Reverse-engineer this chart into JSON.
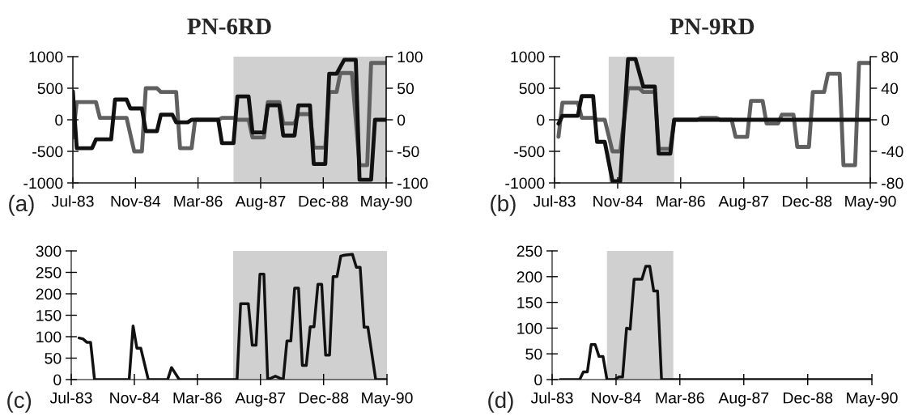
{
  "chart_data": [
    {
      "type": "line",
      "title": "PN-6RD",
      "annotations": [
        "(a)"
      ],
      "xlim": [
        "1983-07-01",
        "1990-05-01"
      ],
      "xticks": [
        {
          "value": "1983-07-01",
          "label": "Jul-83"
        },
        {
          "value": "1984-11-11",
          "label": "Nov-84"
        },
        {
          "value": "1986-03-24",
          "label": "Mar-86"
        },
        {
          "value": "1987-08-05",
          "label": "Aug-87"
        },
        {
          "value": "1988-12-16",
          "label": "Dec-88"
        },
        {
          "value": "1990-05-01",
          "label": "May-90"
        }
      ],
      "ylim": [
        -1000,
        1000
      ],
      "yticks": [
        -1000,
        -500,
        0,
        500,
        1000
      ],
      "y2lim": [
        -100,
        100
      ],
      "y2ticks": [
        -100,
        -50,
        0,
        50,
        100
      ],
      "bands": [
        {
          "axis": "x",
          "from": "1987-01",
          "to": "1990-05",
          "color": "#d0d0d0"
        }
      ],
      "grid": false,
      "legend": false,
      "series": [
        {
          "color": "#606060",
          "x": [
            "1983-07",
            "1983-08",
            "1984-01",
            "1984-02",
            "1984-09",
            "1984-11",
            "1985-01",
            "1985-02",
            "1985-05",
            "1985-06",
            "1985-10",
            "1985-11",
            "1986-02",
            "1986-03",
            "1986-09",
            "1986-10",
            "1987-01",
            "1987-02",
            "1987-05",
            "1987-06",
            "1987-09",
            "1987-10",
            "1988-01",
            "1988-02",
            "1988-05",
            "1988-06",
            "1988-09",
            "1988-10",
            "1989-01",
            "1989-02",
            "1989-04",
            "1989-05",
            "1989-08",
            "1989-10",
            "1989-12",
            "1990-01",
            "1990-05"
          ],
          "values": [
            -280,
            280,
            280,
            30,
            30,
            -500,
            -500,
            500,
            500,
            440,
            440,
            -450,
            -450,
            0,
            0,
            30,
            30,
            0,
            0,
            -280,
            -280,
            280,
            280,
            -60,
            -60,
            90,
            90,
            -440,
            -440,
            440,
            440,
            740,
            740,
            -720,
            -720,
            900,
            900
          ]
        },
        {
          "color": "#111111",
          "axis": "y2",
          "x": [
            "1983-07",
            "1983-08",
            "1983-12",
            "1984-01",
            "1984-05",
            "1984-06",
            "1984-09",
            "1984-10",
            "1985-01",
            "1985-02",
            "1985-05",
            "1985-06",
            "1985-09",
            "1985-10",
            "1986-01",
            "1986-02",
            "1986-09",
            "1986-10",
            "1987-01",
            "1987-02",
            "1987-05",
            "1987-06",
            "1987-09",
            "1987-10",
            "1988-01",
            "1988-02",
            "1988-05",
            "1988-06",
            "1988-09",
            "1988-10",
            "1989-01",
            "1989-02",
            "1989-04",
            "1989-06",
            "1989-09",
            "1989-10",
            "1990-01",
            "1990-02",
            "1990-05"
          ],
          "values": [
            45,
            -45,
            -45,
            -31,
            -31,
            32,
            32,
            18,
            18,
            -18,
            -18,
            8,
            8,
            -4,
            -4,
            0,
            0,
            -37,
            -37,
            37,
            37,
            -20,
            -20,
            23,
            23,
            -25,
            -25,
            23,
            23,
            -70,
            -70,
            73,
            73,
            95,
            95,
            -95,
            -95,
            0,
            0
          ]
        }
      ]
    },
    {
      "type": "line",
      "title": "PN-9RD",
      "annotations": [
        "(b)"
      ],
      "xlim": [
        "1983-07-01",
        "1990-05-01"
      ],
      "xticks": [
        {
          "value": "1983-07-01",
          "label": "Jul-83"
        },
        {
          "value": "1984-11-11",
          "label": "Nov-84"
        },
        {
          "value": "1986-03-24",
          "label": "Mar-86"
        },
        {
          "value": "1987-08-05",
          "label": "Aug-87"
        },
        {
          "value": "1988-12-16",
          "label": "Dec-88"
        },
        {
          "value": "1990-05-01",
          "label": "May-90"
        }
      ],
      "ylim": [
        -1000,
        1000
      ],
      "yticks": [
        -1000,
        -500,
        0,
        500,
        1000
      ],
      "y2lim": [
        -80,
        80
      ],
      "y2ticks": [
        -80,
        -40,
        0,
        40,
        80
      ],
      "bands": [
        {
          "axis": "x",
          "from": "1984-09",
          "to": "1986-02",
          "color": "#d0d0d0"
        }
      ],
      "grid": false,
      "legend": false,
      "series": [
        {
          "color": "#606060",
          "x": [
            "1983-08",
            "1983-09",
            "1984-01",
            "1984-02",
            "1984-05",
            "1984-06",
            "1984-08",
            "1984-10",
            "1984-12",
            "1985-02",
            "1985-05",
            "1985-06",
            "1985-09",
            "1985-10",
            "1986-01",
            "1986-02",
            "1986-08",
            "1986-09",
            "1987-01",
            "1987-02",
            "1987-05",
            "1987-06",
            "1987-09",
            "1987-10",
            "1988-01",
            "1988-02",
            "1988-05",
            "1988-06",
            "1988-09",
            "1988-10",
            "1989-01",
            "1989-02",
            "1989-05",
            "1989-06",
            "1989-09",
            "1989-10",
            "1990-01",
            "1990-02",
            "1990-05"
          ],
          "values": [
            -270,
            270,
            270,
            30,
            30,
            0,
            0,
            -500,
            -500,
            500,
            500,
            440,
            440,
            -460,
            -460,
            0,
            0,
            30,
            30,
            0,
            0,
            -270,
            -270,
            300,
            300,
            -60,
            -60,
            80,
            80,
            -430,
            -430,
            440,
            440,
            730,
            730,
            -720,
            -720,
            900,
            900
          ]
        },
        {
          "color": "#111111",
          "axis": "y2",
          "x": [
            "1983-08",
            "1983-09",
            "1984-01",
            "1984-02",
            "1984-05",
            "1984-06",
            "1984-08",
            "1984-10",
            "1984-12",
            "1985-02",
            "1985-04",
            "1985-06",
            "1985-09",
            "1985-10",
            "1986-01",
            "1986-02",
            "1990-05"
          ],
          "values": [
            -5,
            5,
            5,
            30,
            30,
            -28,
            -28,
            -78,
            -78,
            77,
            77,
            42,
            42,
            -43,
            -43,
            0,
            0
          ]
        }
      ]
    },
    {
      "type": "line",
      "annotations": [
        "(c)"
      ],
      "xlim": [
        "1983-07-01",
        "1990-05-01"
      ],
      "xticks": [
        {
          "value": "1983-07-01",
          "label": "Jul-83"
        },
        {
          "value": "1984-11-11",
          "label": "Nov-84"
        },
        {
          "value": "1986-03-24",
          "label": "Mar-86"
        },
        {
          "value": "1987-08-05",
          "label": "Aug-87"
        },
        {
          "value": "1988-12-16",
          "label": "Dec-88"
        },
        {
          "value": "1990-05-01",
          "label": "May-90"
        }
      ],
      "ylim": [
        0,
        300
      ],
      "yticks": [
        0,
        50,
        100,
        150,
        200,
        250,
        300
      ],
      "bands": [
        {
          "axis": "x",
          "from": "1987-01",
          "to": "1990-05",
          "color": "#d0d0d0"
        }
      ],
      "grid": false,
      "legend": false,
      "series": [
        {
          "color": "#111111",
          "x": [
            "1983-09",
            "1983-10",
            "1983-11",
            "1983-12",
            "1984-01",
            "1984-10",
            "1984-11",
            "1984-12",
            "1985-01",
            "1985-03",
            "1985-08",
            "1985-09",
            "1985-11",
            "1987-02",
            "1987-03",
            "1987-05",
            "1987-06",
            "1987-07",
            "1987-08",
            "1987-09",
            "1987-10",
            "1987-12",
            "1988-02",
            "1988-03",
            "1988-04",
            "1988-05",
            "1988-06",
            "1988-07",
            "1988-08",
            "1988-09",
            "1988-10",
            "1988-11",
            "1988-12",
            "1989-01",
            "1989-02",
            "1989-03",
            "1989-04",
            "1989-05",
            "1989-06",
            "1989-08",
            "1989-09",
            "1989-10",
            "1989-11",
            "1989-12",
            "1990-02",
            "1990-05"
          ],
          "values": [
            97,
            95,
            87,
            87,
            0,
            0,
            125,
            73,
            73,
            0,
            0,
            28,
            0,
            0,
            177,
            177,
            80,
            80,
            246,
            246,
            0,
            8,
            0,
            90,
            90,
            213,
            213,
            33,
            33,
            123,
            123,
            222,
            222,
            57,
            57,
            240,
            240,
            288,
            290,
            292,
            262,
            262,
            122,
            122,
            0,
            0
          ]
        }
      ]
    },
    {
      "type": "line",
      "annotations": [
        "(d)"
      ],
      "xlim": [
        "1983-07-01",
        "1990-05-01"
      ],
      "xticks": [
        {
          "value": "1983-07-01",
          "label": "Jul-83"
        },
        {
          "value": "1984-11-11",
          "label": "Nov-84"
        },
        {
          "value": "1986-03-24",
          "label": "Mar-86"
        },
        {
          "value": "1987-08-05",
          "label": "Aug-87"
        },
        {
          "value": "1988-12-16",
          "label": "Dec-88"
        },
        {
          "value": "1990-05-01",
          "label": "May-90"
        }
      ],
      "ylim": [
        0,
        250
      ],
      "yticks": [
        0,
        50,
        100,
        150,
        200,
        250
      ],
      "bands": [
        {
          "axis": "x",
          "from": "1984-09",
          "to": "1986-02",
          "color": "#d0d0d0"
        }
      ],
      "grid": false,
      "legend": false,
      "series": [
        {
          "color": "#111111",
          "x": [
            "1983-09",
            "1984-02",
            "1984-03",
            "1984-04",
            "1984-05",
            "1984-06",
            "1984-07",
            "1984-08",
            "1984-09",
            "1984-11",
            "1984-12",
            "1985-01",
            "1985-02",
            "1985-03",
            "1985-04",
            "1985-06",
            "1985-07",
            "1985-08",
            "1985-09",
            "1985-10",
            "1985-11",
            "1990-05"
          ],
          "values": [
            0,
            0,
            15,
            15,
            68,
            68,
            45,
            45,
            0,
            0,
            5,
            5,
            100,
            98,
            195,
            195,
            220,
            220,
            172,
            172,
            0,
            0
          ]
        }
      ]
    }
  ]
}
